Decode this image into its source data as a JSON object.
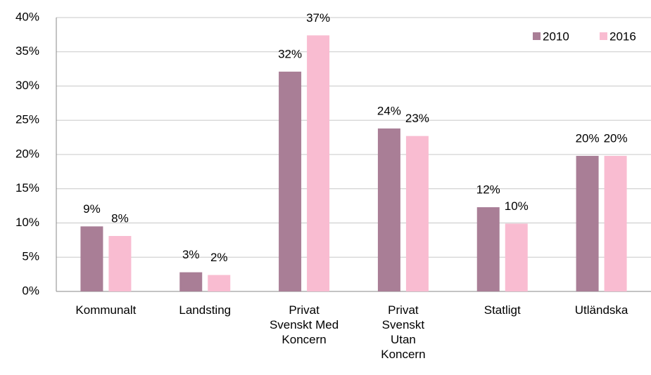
{
  "chart_data": {
    "type": "bar",
    "categories": [
      "Kommunalt",
      "Landsting",
      "Privat Svenskt Med Koncern",
      "Privat Svenskt Utan Koncern",
      "Statligt",
      "Utländska"
    ],
    "series": [
      {
        "name": "2010",
        "color": "#a97e96",
        "values": [
          9.5,
          2.8,
          32.1,
          23.8,
          12.3,
          19.8
        ],
        "value_labels": [
          "9%",
          "3%",
          "32%",
          "24%",
          "12%",
          "20%"
        ]
      },
      {
        "name": "2016",
        "color": "#f9bcd1",
        "values": [
          8.1,
          2.4,
          37.4,
          22.7,
          9.9,
          19.8
        ],
        "value_labels": [
          "8%",
          "2%",
          "37%",
          "23%",
          "10%",
          "20%"
        ]
      }
    ],
    "ylim": [
      0,
      40
    ],
    "yticks": [
      {
        "value": 0,
        "label": "0%"
      },
      {
        "value": 5,
        "label": "5%"
      },
      {
        "value": 10,
        "label": "10%"
      },
      {
        "value": 15,
        "label": "15%"
      },
      {
        "value": 20,
        "label": "20%"
      },
      {
        "value": 25,
        "label": "25%"
      },
      {
        "value": 30,
        "label": "30%"
      },
      {
        "value": 35,
        "label": "35%"
      },
      {
        "value": 40,
        "label": "40%"
      }
    ],
    "grid": true,
    "legend": "top-right"
  }
}
